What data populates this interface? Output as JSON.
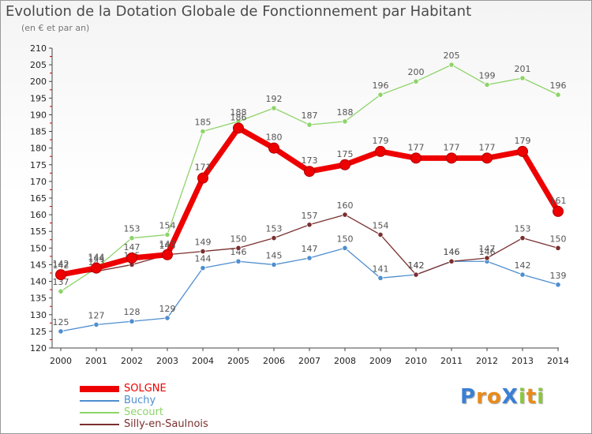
{
  "title": "Evolution de la Dotation Globale de Fonctionnement par Habitant",
  "subtitle": "(en € et par an)",
  "chart_data": {
    "type": "line",
    "title": "Evolution de la Dotation Globale de Fonctionnement par Habitant",
    "subtitle": "(en € et par an)",
    "xlabel": "",
    "ylabel": "",
    "ylim": [
      120,
      210
    ],
    "ytick_step": 5,
    "x": [
      "2000",
      "2001",
      "2002",
      "2003",
      "2004",
      "2005",
      "2006",
      "2007",
      "2008",
      "2009",
      "2010",
      "2011",
      "2012",
      "2013",
      "2014"
    ],
    "series": [
      {
        "name": "Buchy",
        "color": "#4e8ecf",
        "values": [
          125,
          127,
          128,
          129,
          144,
          146,
          145,
          147,
          150,
          141,
          142,
          146,
          146,
          142,
          139
        ]
      },
      {
        "name": "Secourt",
        "color": "#8ed46a",
        "values": [
          137,
          144,
          153,
          154,
          185,
          188,
          192,
          187,
          188,
          196,
          200,
          205,
          199,
          201,
          196
        ]
      },
      {
        "name": "Silly-en-Saulnois",
        "color": "#7a2f2f",
        "values": [
          142,
          143,
          145,
          148,
          149,
          150,
          153,
          157,
          160,
          154,
          142,
          146,
          147,
          153,
          150
        ]
      },
      {
        "name": "SOLGNE",
        "color": "#ee0000",
        "values": [
          142,
          144,
          147,
          148,
          171,
          186,
          180,
          173,
          175,
          179,
          177,
          177,
          177,
          179,
          161
        ]
      }
    ],
    "legend": [
      "SOLGNE",
      "Buchy",
      "Secourt",
      "Silly-en-Saulnois"
    ],
    "legend_position": "bottom-left",
    "grid": false
  },
  "logo": {
    "text": "ProXiti",
    "letters": [
      "P",
      "r",
      "o",
      "X",
      "i",
      "t",
      "i"
    ],
    "colors": [
      "#3a7fd5",
      "#e98b1b",
      "#e98b1b",
      "#3a7fd5",
      "#8cc63f",
      "#e98b1b",
      "#8cc63f"
    ]
  }
}
